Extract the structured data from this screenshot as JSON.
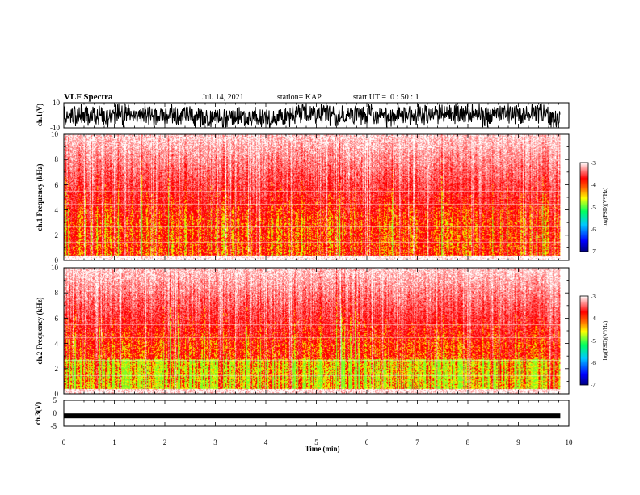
{
  "header": {
    "title": "VLF Spectra",
    "date": "Jul. 14, 2021",
    "station": "station= KAP",
    "start": "start UT =  0 : 50 : 1"
  },
  "colors": {
    "colormap": [
      "#000080",
      "#0000ff",
      "#00c8ff",
      "#00ff60",
      "#ffff00",
      "#ff6000",
      "#ff0000",
      "#ffffff"
    ],
    "waveform": "#000000"
  },
  "chart_data": [
    {
      "type": "line",
      "name": "ch1-waveform",
      "ylabel": "ch.1(V)",
      "ylim": [
        -10,
        10
      ],
      "yticks": [
        "10",
        "-10"
      ],
      "xlim": [
        0,
        10
      ],
      "description_values": "dense oscillating waveform filling most of range"
    },
    {
      "type": "heatmap",
      "name": "ch1-spectrogram",
      "ylabel": "ch.1 Frequency (kHz)",
      "ylim": [
        0,
        10
      ],
      "yticks": [
        "0",
        "2",
        "4",
        "6",
        "8",
        "10"
      ],
      "xlim": [
        0,
        10
      ],
      "colorbar": {
        "label": "log(PSD)(V²/Hz)",
        "range": [
          -7,
          -3
        ],
        "ticks": [
          "-3",
          "-4",
          "-5",
          "-6",
          "-7"
        ]
      }
    },
    {
      "type": "heatmap",
      "name": "ch2-spectrogram",
      "ylabel": "ch.2 Frequency (kHz)",
      "ylim": [
        0,
        10
      ],
      "yticks": [
        "0",
        "2",
        "4",
        "6",
        "8",
        "10"
      ],
      "xlim": [
        0,
        10
      ],
      "colorbar": {
        "label": "log(PSD)(V²/Hz)",
        "range": [
          -7,
          -3
        ],
        "ticks": [
          "-3",
          "-4",
          "-5",
          "-6",
          "-7"
        ]
      }
    },
    {
      "type": "line",
      "name": "ch3-waveform",
      "ylabel": "ch.3(V)",
      "ylim": [
        -5,
        5
      ],
      "yticks": [
        "5",
        "0",
        "-5"
      ],
      "xlim": [
        0,
        10
      ],
      "center_value": -1
    }
  ],
  "xaxis": {
    "label": "Time (min)",
    "ticks": [
      "0",
      "1",
      "2",
      "3",
      "4",
      "5",
      "6",
      "7",
      "8",
      "9",
      "10"
    ],
    "range": [
      0,
      10
    ],
    "data_end": 9.83
  }
}
